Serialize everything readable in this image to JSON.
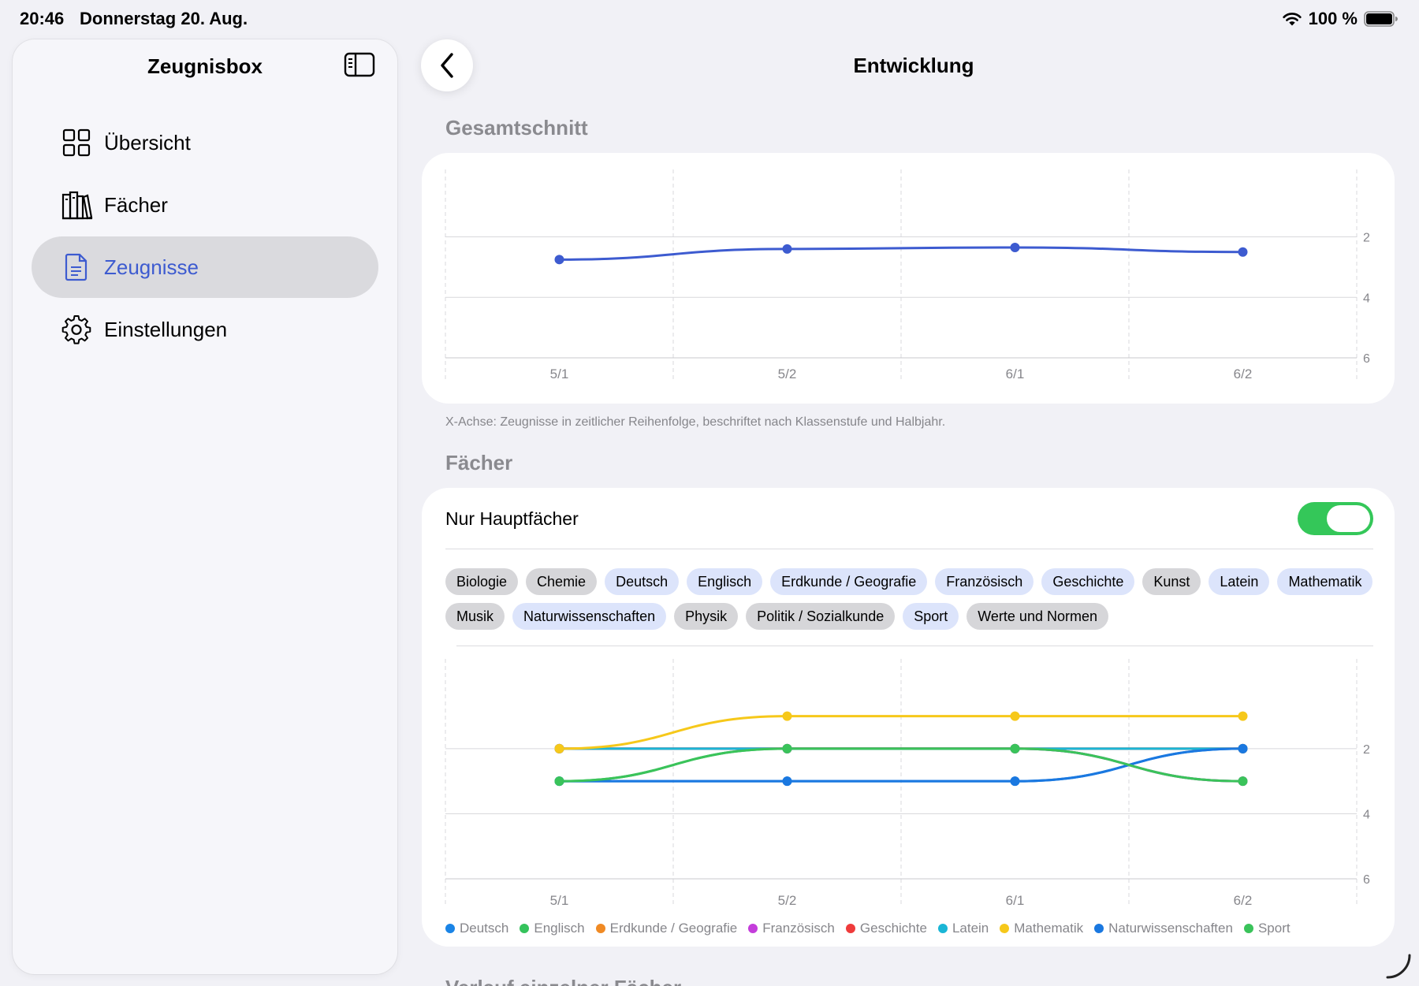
{
  "status": {
    "time": "20:46",
    "date": "Donnerstag 20. Aug.",
    "battery": "100 %"
  },
  "sidebar": {
    "title": "Zeugnisbox",
    "items": [
      {
        "label": "Übersicht",
        "icon": "grid-icon"
      },
      {
        "label": "Fächer",
        "icon": "books-icon"
      },
      {
        "label": "Zeugnisse",
        "icon": "document-icon",
        "active": true
      },
      {
        "label": "Einstellungen",
        "icon": "gear-icon"
      }
    ]
  },
  "header": {
    "title": "Entwicklung"
  },
  "overall": {
    "section_title": "Gesamtschnitt",
    "footnote": "X-Achse: Zeugnisse in zeitlicher Reihenfolge, beschriftet nach Klassenstufe und Halbjahr."
  },
  "subjects": {
    "section_title": "Fächer",
    "toggle_label": "Nur Hauptfächer",
    "toggle_on": true,
    "chips": [
      {
        "label": "Biologie",
        "selected": false
      },
      {
        "label": "Chemie",
        "selected": false
      },
      {
        "label": "Deutsch",
        "selected": true
      },
      {
        "label": "Englisch",
        "selected": true
      },
      {
        "label": "Erdkunde / Geografie",
        "selected": true
      },
      {
        "label": "Französisch",
        "selected": true
      },
      {
        "label": "Geschichte",
        "selected": true
      },
      {
        "label": "Kunst",
        "selected": false
      },
      {
        "label": "Latein",
        "selected": true
      },
      {
        "label": "Mathematik",
        "selected": true
      },
      {
        "label": "Musik",
        "selected": false
      },
      {
        "label": "Naturwissenschaften",
        "selected": true
      },
      {
        "label": "Physik",
        "selected": false
      },
      {
        "label": "Politik / Sozialkunde",
        "selected": false
      },
      {
        "label": "Sport",
        "selected": true
      },
      {
        "label": "Werte und Normen",
        "selected": false
      }
    ]
  },
  "chart_data": [
    {
      "type": "line",
      "title": "Gesamtschnitt",
      "categories": [
        "5/1",
        "5/2",
        "6/1",
        "6/2"
      ],
      "y_ticks": [
        2,
        4,
        6
      ],
      "ylim": [
        0.5,
        6
      ],
      "y_inverted": true,
      "grid": true,
      "series": [
        {
          "values": [
            2.75,
            2.4,
            2.35,
            2.5
          ],
          "color": "#3d5bd0"
        }
      ]
    },
    {
      "type": "line",
      "title": "Fächer",
      "categories": [
        "5/1",
        "5/2",
        "6/1",
        "6/2"
      ],
      "y_ticks": [
        2,
        4,
        6
      ],
      "ylim": [
        0.5,
        6
      ],
      "y_inverted": true,
      "grid": true,
      "legend": "bottom",
      "series": [
        {
          "name": "Deutsch",
          "color": "#1a84e6",
          "values": [
            3,
            3,
            3,
            2
          ]
        },
        {
          "name": "Englisch",
          "color": "#35c35c",
          "values": [
            3,
            2,
            2,
            3
          ]
        },
        {
          "name": "Erdkunde / Geografie",
          "color": "#f08a24",
          "values": [
            2,
            2,
            2,
            2
          ]
        },
        {
          "name": "Französisch",
          "color": "#c43ddb",
          "values": [
            2,
            2,
            2,
            3
          ]
        },
        {
          "name": "Geschichte",
          "color": "#ef3b3b",
          "values": [
            2,
            2,
            2,
            2
          ]
        },
        {
          "name": "Latein",
          "color": "#1ab6d6",
          "values": [
            2,
            2,
            2,
            2
          ]
        },
        {
          "name": "Mathematik",
          "color": "#f6c81a",
          "values": [
            2,
            1,
            1,
            1
          ]
        },
        {
          "name": "Naturwissenschaften",
          "color": "#1a78e0",
          "values": [
            3,
            3,
            3,
            2
          ]
        },
        {
          "name": "Sport",
          "color": "#3ac35a",
          "values": [
            3,
            2,
            2,
            3
          ]
        }
      ]
    }
  ],
  "partial_section_title": "Verlauf einzelner Fächer"
}
